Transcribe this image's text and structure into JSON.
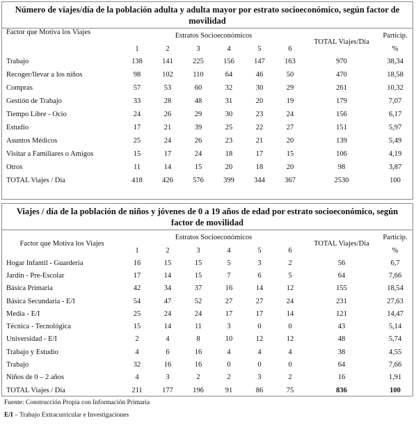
{
  "tables": [
    {
      "title": "Número de viajes/día de la población adulta y adulta mayor por estrato socioeconómico, según factor de movilidad",
      "header": {
        "factor": "Factor que Motiva los Viajes",
        "estratos": "Estratos Socioeconómicos",
        "columns": [
          1,
          2,
          3,
          4,
          5,
          6
        ],
        "total": "TOTAL Viajes/Día",
        "particip": "Particip.",
        "percent": "%"
      },
      "rows": [
        [
          "Trabajo",
          138,
          141,
          225,
          156,
          147,
          163,
          970,
          "38,34"
        ],
        [
          "Recoger/llevar a los niños",
          98,
          102,
          110,
          64,
          46,
          50,
          470,
          "18,58"
        ],
        [
          "Compras",
          57,
          53,
          60,
          32,
          30,
          29,
          261,
          "10,32"
        ],
        [
          "Gestión de Trabajo",
          33,
          28,
          48,
          31,
          20,
          19,
          179,
          "7,07"
        ],
        [
          "Tiempo Libre - Ocio",
          24,
          26,
          29,
          30,
          23,
          24,
          156,
          "6,17"
        ],
        [
          "Estudio",
          17,
          21,
          39,
          25,
          22,
          27,
          151,
          "5,97"
        ],
        [
          "Asuntos Médicos",
          25,
          24,
          26,
          23,
          21,
          20,
          139,
          "5,49"
        ],
        [
          "Visitar a Familiares o Amigos",
          15,
          17,
          24,
          18,
          17,
          15,
          106,
          "4,19"
        ],
        [
          "Otros",
          11,
          14,
          15,
          20,
          18,
          20,
          98,
          "3,87"
        ],
        [
          "TOTAL Viajes / Día",
          418,
          426,
          576,
          399,
          344,
          367,
          2530,
          100
        ]
      ]
    },
    {
      "title": "Viajes / día de la población de niños y jóvenes de 0 a 19 años de edad por estrato socioeconómico, según factor de movilidad",
      "header": {
        "factor": "Factor que Motiva los Viajes",
        "estratos": "Estratos Socioeconómicos",
        "columns": [
          1,
          2,
          3,
          4,
          5,
          6
        ],
        "total": "TOTAL Viajes/Día",
        "particip": "Particip.",
        "percent": "%"
      },
      "rows": [
        [
          "Hogar Infantil - Guarderia",
          16,
          15,
          15,
          5,
          3,
          2,
          56,
          "6,7"
        ],
        [
          "Jardín - Pre-Escolar",
          17,
          14,
          15,
          7,
          6,
          5,
          64,
          "7,66"
        ],
        [
          "Básica Primaria",
          42,
          34,
          37,
          16,
          14,
          12,
          155,
          "18,54"
        ],
        [
          "Básica Secundaria - E/I",
          54,
          47,
          52,
          27,
          27,
          24,
          231,
          "27,63"
        ],
        [
          "Media - E/I",
          25,
          24,
          24,
          17,
          17,
          14,
          121,
          "14,47"
        ],
        [
          "Técnica - Tecnológica",
          15,
          14,
          11,
          3,
          0,
          0,
          43,
          "5,14"
        ],
        [
          "Universidad - E/I",
          2,
          4,
          8,
          10,
          12,
          12,
          48,
          "5,74"
        ],
        [
          "Trabajo y Estudio",
          4,
          6,
          16,
          4,
          4,
          4,
          38,
          "4,55"
        ],
        [
          "Trabajo",
          32,
          16,
          16,
          0,
          0,
          0,
          64,
          "7,66"
        ],
        [
          "Niños de 0 – 2 años",
          4,
          3,
          2,
          2,
          3,
          2,
          16,
          "1,91"
        ],
        [
          "TOTAL Viajes / Día",
          211,
          177,
          196,
          91,
          86,
          75,
          836,
          100
        ]
      ]
    }
  ],
  "footer": {
    "source": "Fuente: Construcción Propia con Información Primaria",
    "note_abbr": "E/I",
    "note_text": "– Trabajo Extracurricular e Investigaciones"
  }
}
